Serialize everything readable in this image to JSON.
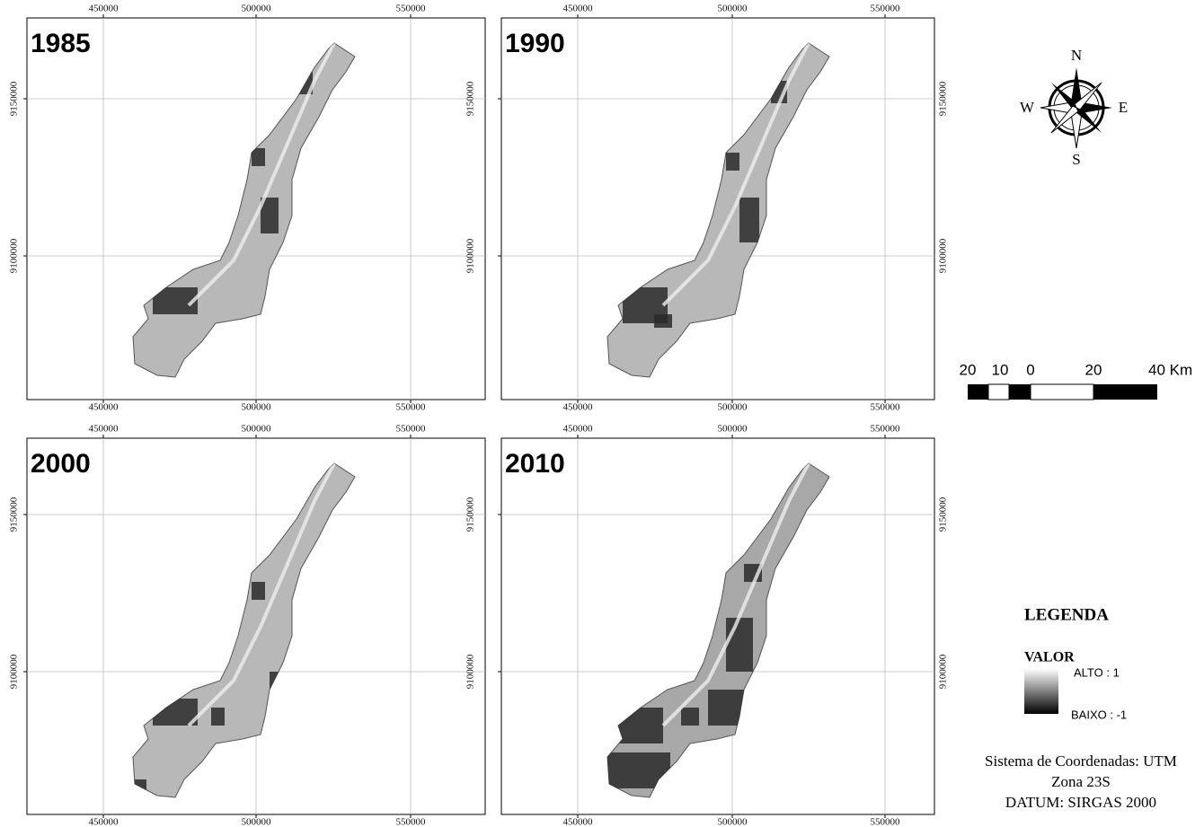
{
  "panels": [
    {
      "year": "1985",
      "x_ticks": [
        "450000",
        "500000",
        "550000"
      ],
      "y_ticks": [
        "9150000",
        "9100000"
      ]
    },
    {
      "year": "1990",
      "x_ticks": [
        "450000",
        "500000",
        "550000"
      ],
      "y_ticks": [
        "9150000",
        "9100000"
      ]
    },
    {
      "year": "2000",
      "x_ticks": [
        "450000",
        "500000",
        "550000"
      ],
      "y_ticks": [
        "9150000",
        "9100000"
      ]
    },
    {
      "year": "2010",
      "x_ticks": [
        "450000",
        "500000",
        "550000"
      ],
      "y_ticks": [
        "9150000",
        "9100000"
      ]
    }
  ],
  "north_arrow": {
    "n": "N",
    "s": "S",
    "e": "E",
    "w": "W"
  },
  "scale_bar": {
    "labels": [
      "20",
      "10",
      "0",
      "20",
      "40 Km"
    ]
  },
  "legend": {
    "title": "LEGENDA",
    "subtitle": "VALOR",
    "high": "ALTO : 1",
    "low": "BAIXO : -1"
  },
  "coordinate_system": [
    "Sistema de Coordenadas: UTM",
    "Zona  23S",
    "DATUM: SIRGAS 2000"
  ]
}
